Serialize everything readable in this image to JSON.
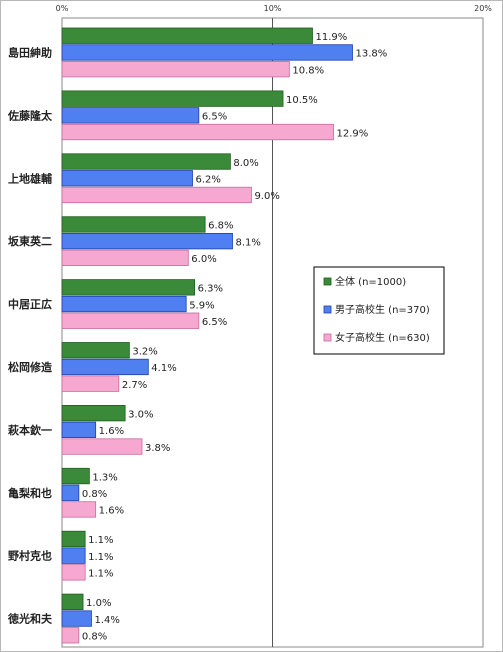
{
  "chart_data": {
    "type": "bar",
    "orientation": "horizontal",
    "title": "",
    "xlabel": "",
    "ylabel": "",
    "xlim": [
      0,
      20
    ],
    "x_ticks": [
      "0%",
      "10%",
      "20%"
    ],
    "value_suffix": "%",
    "grid": false,
    "legend_position": "right-middle",
    "categories": [
      "島田紳助",
      "佐藤隆太",
      "上地雄輔",
      "坂東英二",
      "中居正広",
      "松岡修造",
      "萩本欽一",
      "亀梨和也",
      "野村克也",
      "徳光和夫"
    ],
    "series": [
      {
        "name": "全体 (n=1000)",
        "color": "#3a8a3a",
        "border": "#1f5f1f",
        "values": [
          11.9,
          10.5,
          8.0,
          6.8,
          6.3,
          3.2,
          3.0,
          1.3,
          1.1,
          1.0
        ]
      },
      {
        "name": "男子高校生 (n=370)",
        "color": "#4f7ff0",
        "border": "#1f3fa8",
        "values": [
          13.8,
          6.5,
          6.2,
          8.1,
          5.9,
          4.1,
          1.6,
          0.8,
          1.1,
          1.4
        ]
      },
      {
        "name": "女子高校生 (n=630)",
        "color": "#f7a8d0",
        "border": "#c86a9c",
        "values": [
          10.8,
          12.9,
          9.0,
          6.0,
          6.5,
          2.7,
          3.8,
          1.6,
          1.1,
          0.8
        ]
      }
    ]
  }
}
